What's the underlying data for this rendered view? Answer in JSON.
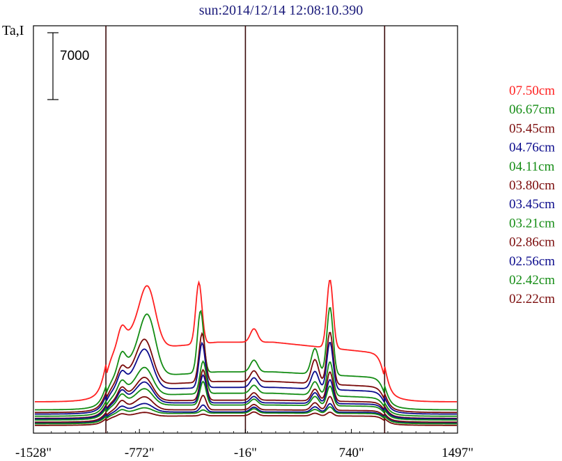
{
  "title": "sun:2014/12/14 12:08:10.390",
  "chart_data": {
    "type": "line",
    "title": "sun:2014/12/14 12:08:10.390",
    "ylabel": "Ta,I",
    "scale_bar": "7000",
    "x_ticks": [
      "-1528\"",
      "-772\"",
      "-16\"",
      "740\"",
      "1497\""
    ],
    "x_tick_values": [
      -1528,
      -772,
      -16,
      740,
      1497
    ],
    "xlim": [
      -1528,
      1497
    ],
    "vertical_markers": [
      -1011,
      -16,
      977
    ],
    "y_unit_scale": 7000,
    "colors": {
      "red": "#ff2020",
      "green": "#148c14",
      "maroon": "#7a0a0a",
      "blue": "#0b0b8c"
    },
    "series": [
      {
        "name": "07.50cm",
        "color": "#ff2020",
        "baseline": 5600,
        "center": 11150,
        "limb_left": 9000,
        "limb_right": 8750,
        "peaks": [
          [
            -712,
            9650
          ],
          [
            -348,
            11500
          ],
          [
            587,
            12800
          ]
        ],
        "small_peaks": [
          [
            -899,
            3000
          ],
          [
            45,
            2500
          ]
        ]
      },
      {
        "name": "06.67cm",
        "color": "#148c14",
        "baseline": 4100,
        "center": 7100,
        "limb_left": 5600,
        "limb_right": 5850,
        "peaks": [
          [
            -712,
            9550
          ],
          [
            -336,
            11650
          ],
          [
            587,
            12700
          ]
        ],
        "small_peaks": [
          [
            -899,
            3100
          ],
          [
            45,
            2200
          ],
          [
            480,
            4800
          ]
        ]
      },
      {
        "name": "05.45cm",
        "color": "#7a0a0a",
        "baseline": 3600,
        "center": 5800,
        "limb_left": 4700,
        "limb_right": 4650,
        "peaks": [
          [
            -730,
            7000
          ],
          [
            -325,
            9100
          ],
          [
            587,
            9800
          ]
        ],
        "small_peaks": [
          [
            -899,
            2200
          ],
          [
            45,
            2000
          ],
          [
            480,
            4500
          ]
        ]
      },
      {
        "name": "04.76cm",
        "color": "#0b0b8c",
        "baseline": 3300,
        "center": 5000,
        "limb_left": 4300,
        "limb_right": 4100,
        "peaks": [
          [
            -730,
            6200
          ],
          [
            -325,
            8400
          ],
          [
            587,
            8900
          ]
        ],
        "small_peaks": [
          [
            -899,
            2200
          ],
          [
            45,
            1800
          ],
          [
            480,
            3300
          ]
        ]
      },
      {
        "name": "04.11cm",
        "color": "#148c14",
        "baseline": 2900,
        "center": 4300,
        "limb_left": 3600,
        "limb_right": 3300,
        "peaks": [
          [
            -730,
            4300
          ],
          [
            -318,
            6050
          ],
          [
            587,
            6350
          ]
        ],
        "small_peaks": [
          [
            -899,
            2000
          ],
          [
            45,
            1500
          ],
          [
            480,
            2500
          ]
        ]
      },
      {
        "name": "03.80cm",
        "color": "#7a0a0a",
        "baseline": 2500,
        "center": 3400,
        "limb_left": 3200,
        "limb_right": 3000,
        "peaks": [
          [
            -730,
            3600
          ],
          [
            -318,
            5700
          ],
          [
            587,
            5500
          ]
        ],
        "small_peaks": [
          [
            -899,
            1800
          ],
          [
            45,
            1400
          ],
          [
            480,
            2200
          ]
        ]
      },
      {
        "name": "03.45cm",
        "color": "#0b0b8c",
        "baseline": 2400,
        "center": 3000,
        "limb_left": 3000,
        "limb_right": 2700,
        "peaks": [
          [
            -730,
            3200
          ],
          [
            -318,
            5200
          ],
          [
            587,
            4500
          ]
        ],
        "small_peaks": [
          [
            -899,
            1700
          ],
          [
            45,
            1200
          ],
          [
            480,
            2000
          ]
        ]
      },
      {
        "name": "03.21cm",
        "color": "#148c14",
        "baseline": 2200,
        "center": 2800,
        "limb_left": 2800,
        "limb_right": 2500,
        "peaks": [
          [
            -730,
            2500
          ],
          [
            -318,
            4400
          ],
          [
            587,
            3700
          ]
        ],
        "small_peaks": [
          [
            -899,
            1500
          ],
          [
            45,
            1100
          ],
          [
            480,
            1700
          ]
        ]
      },
      {
        "name": "02.86cm",
        "color": "#7a0a0a",
        "baseline": 1800,
        "center": 2300,
        "limb_left": 2300,
        "limb_right": 2100,
        "peaks": [
          [
            -730,
            2000
          ],
          [
            -318,
            2700
          ],
          [
            587,
            2600
          ]
        ],
        "small_peaks": [
          [
            -899,
            1300
          ],
          [
            45,
            1000
          ],
          [
            480,
            1400
          ]
        ]
      },
      {
        "name": "02.56cm",
        "color": "#0b0b8c",
        "baseline": 1600,
        "center": 2100,
        "limb_left": 2100,
        "limb_right": 2000,
        "peaks": [
          [
            -730,
            1300
          ],
          [
            -318,
            1300
          ],
          [
            587,
            1600
          ]
        ],
        "small_peaks": [
          [
            -899,
            800
          ],
          [
            45,
            900
          ],
          [
            480,
            1000
          ]
        ]
      },
      {
        "name": "02.42cm",
        "color": "#148c14",
        "baseline": 1500,
        "center": 2000,
        "limb_left": 1800,
        "limb_right": 1900,
        "peaks": [
          [
            -730,
            900
          ],
          [
            -318,
            600
          ],
          [
            587,
            1200
          ]
        ],
        "small_peaks": [
          [
            -899,
            600
          ],
          [
            45,
            800
          ],
          [
            480,
            700
          ]
        ]
      },
      {
        "name": "02.22cm",
        "color": "#7a0a0a",
        "baseline": 1200,
        "center": 1800,
        "limb_left": 1600,
        "limb_right": 1700,
        "peaks": [
          [
            -730,
            600
          ],
          [
            -318,
            300
          ],
          [
            587,
            700
          ]
        ],
        "small_peaks": [
          [
            -899,
            400
          ],
          [
            45,
            700
          ],
          [
            480,
            500
          ]
        ]
      }
    ]
  }
}
